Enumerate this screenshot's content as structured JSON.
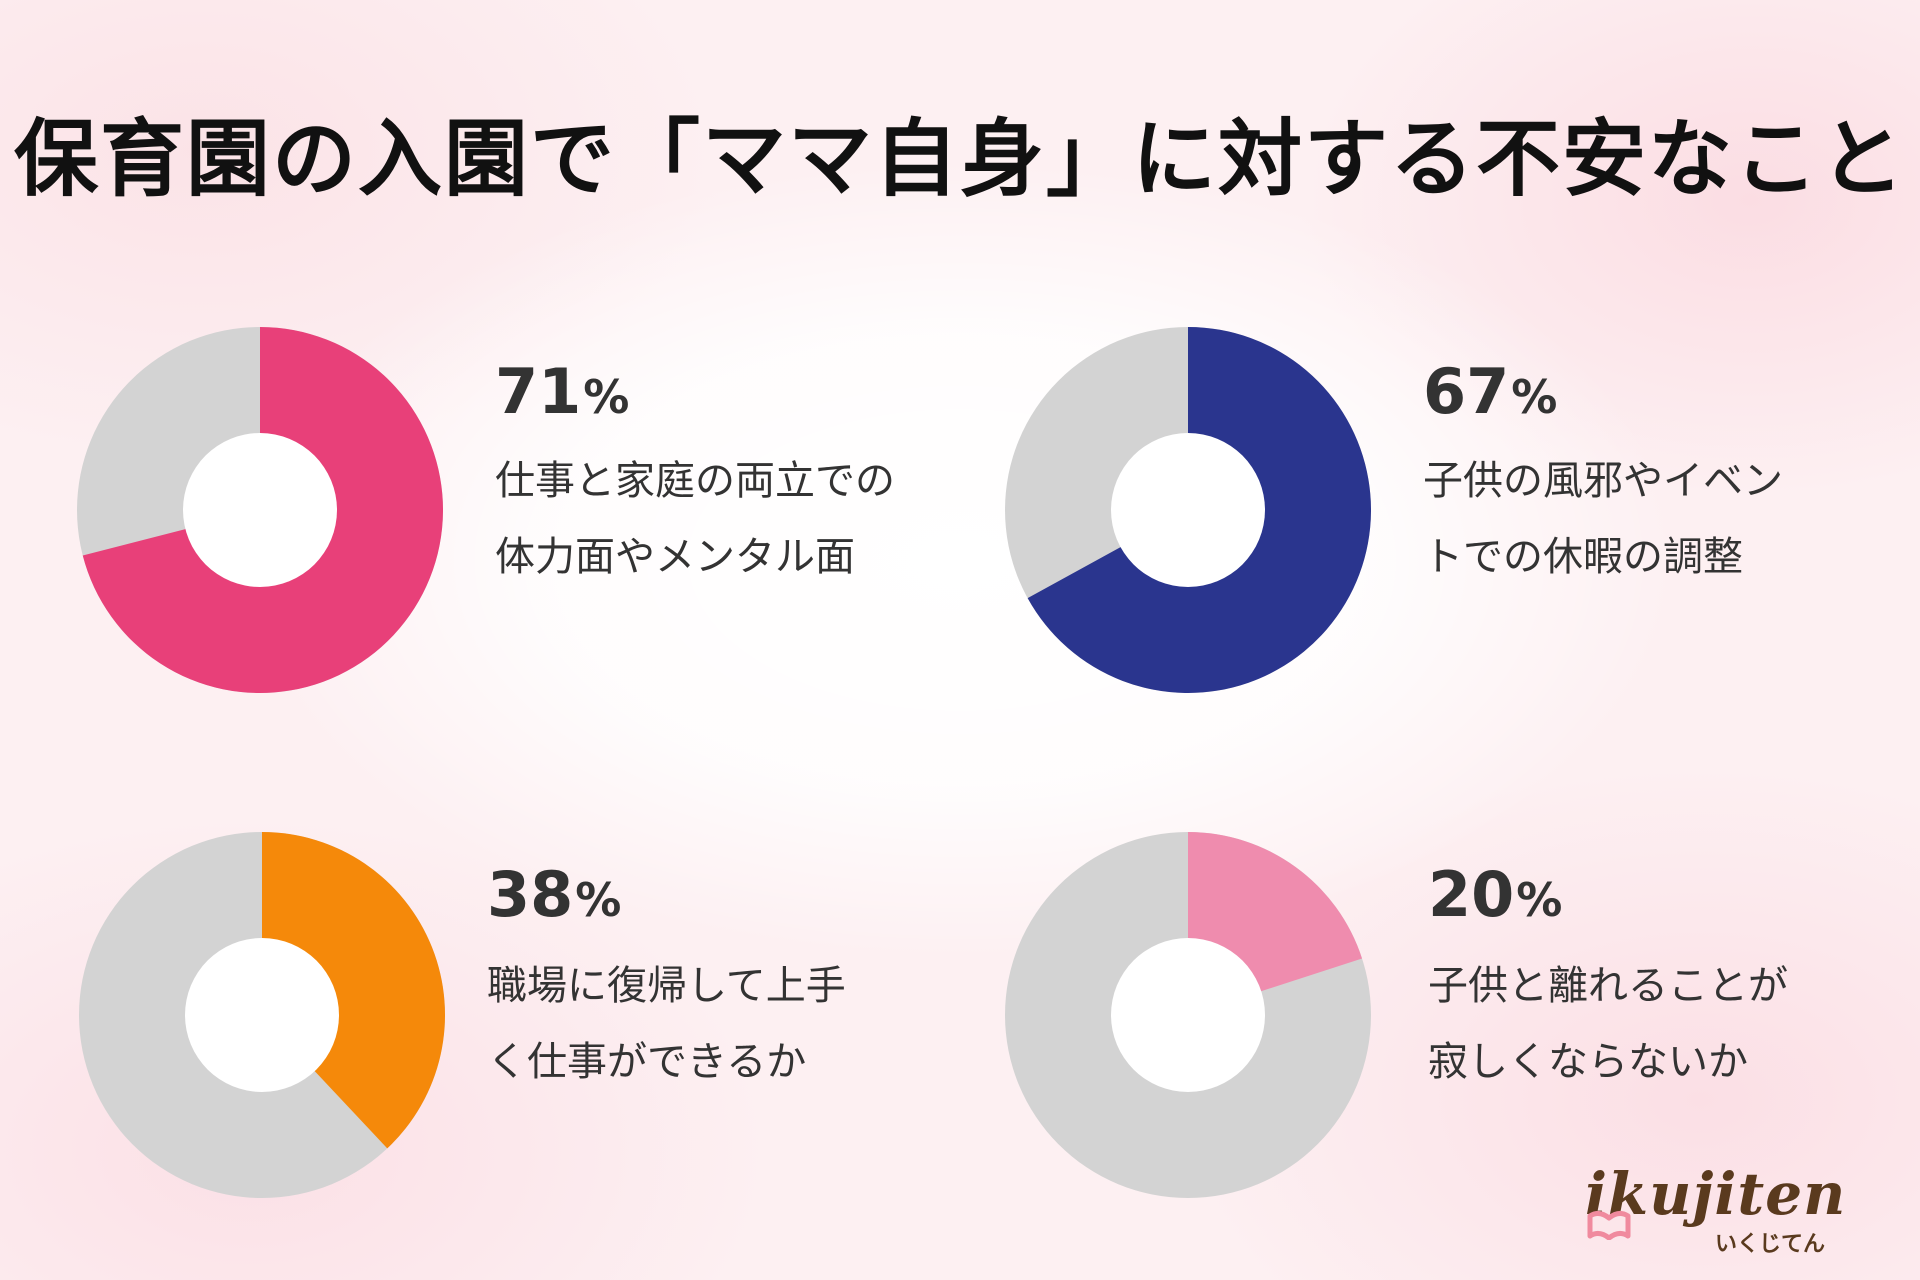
{
  "title": "保育園の入園で「ママ自身」に対する不安なこと",
  "colors": {
    "remainder": "#d3d3d3",
    "hole": "#ffffff"
  },
  "chart_data": [
    {
      "type": "pie",
      "title": "",
      "value_label": "71%",
      "value": 71,
      "color": "#e84079",
      "label_lines": [
        "仕事と家庭の両立での",
        "体力面やメンタル面"
      ]
    },
    {
      "type": "pie",
      "title": "",
      "value_label": "67%",
      "value": 67,
      "color": "#2a358e",
      "label_lines": [
        "子供の風邪やイベン",
        "トでの休暇の調整"
      ]
    },
    {
      "type": "pie",
      "title": "",
      "value_label": "38%",
      "value": 38,
      "color": "#f5890a",
      "label_lines": [
        "職場に復帰して上手",
        "く仕事ができるか"
      ]
    },
    {
      "type": "pie",
      "title": "",
      "value_label": "20%",
      "value": 20,
      "color": "#ef8cae",
      "label_lines": [
        "子供と離れることが",
        "寂しくならないか"
      ]
    }
  ],
  "logo": {
    "brand": "ikujiten",
    "brand_kana": "いくじてん",
    "mark_color": "#f08a9e"
  }
}
